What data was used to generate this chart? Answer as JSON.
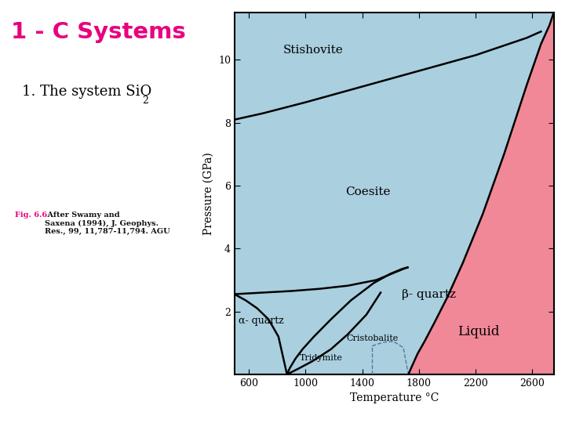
{
  "title": "1 - C Systems",
  "subtitle_main": "1. The system SiO",
  "subtitle_sub": "2",
  "caption_bold": "Fig. 6.6.",
  "caption_rest": " After Swamy and\nSaxena (1994), J. Geophys.\nRes., 99, 11,787-11,794. AGU",
  "title_color": "#e8007f",
  "caption_color": "#e8007f",
  "xlabel": "Temperature °C",
  "ylabel": "Pressure (GPa)",
  "xlim": [
    500,
    2750
  ],
  "ylim": [
    0,
    11.5
  ],
  "xticks": [
    600,
    1000,
    1400,
    1800,
    2200,
    2600
  ],
  "yticks": [
    2,
    4,
    6,
    8,
    10
  ],
  "bg_color": "#aacfdf",
  "liquid_color": "#f08898",
  "line_color": "#000000",
  "bg_white": "#ffffff"
}
